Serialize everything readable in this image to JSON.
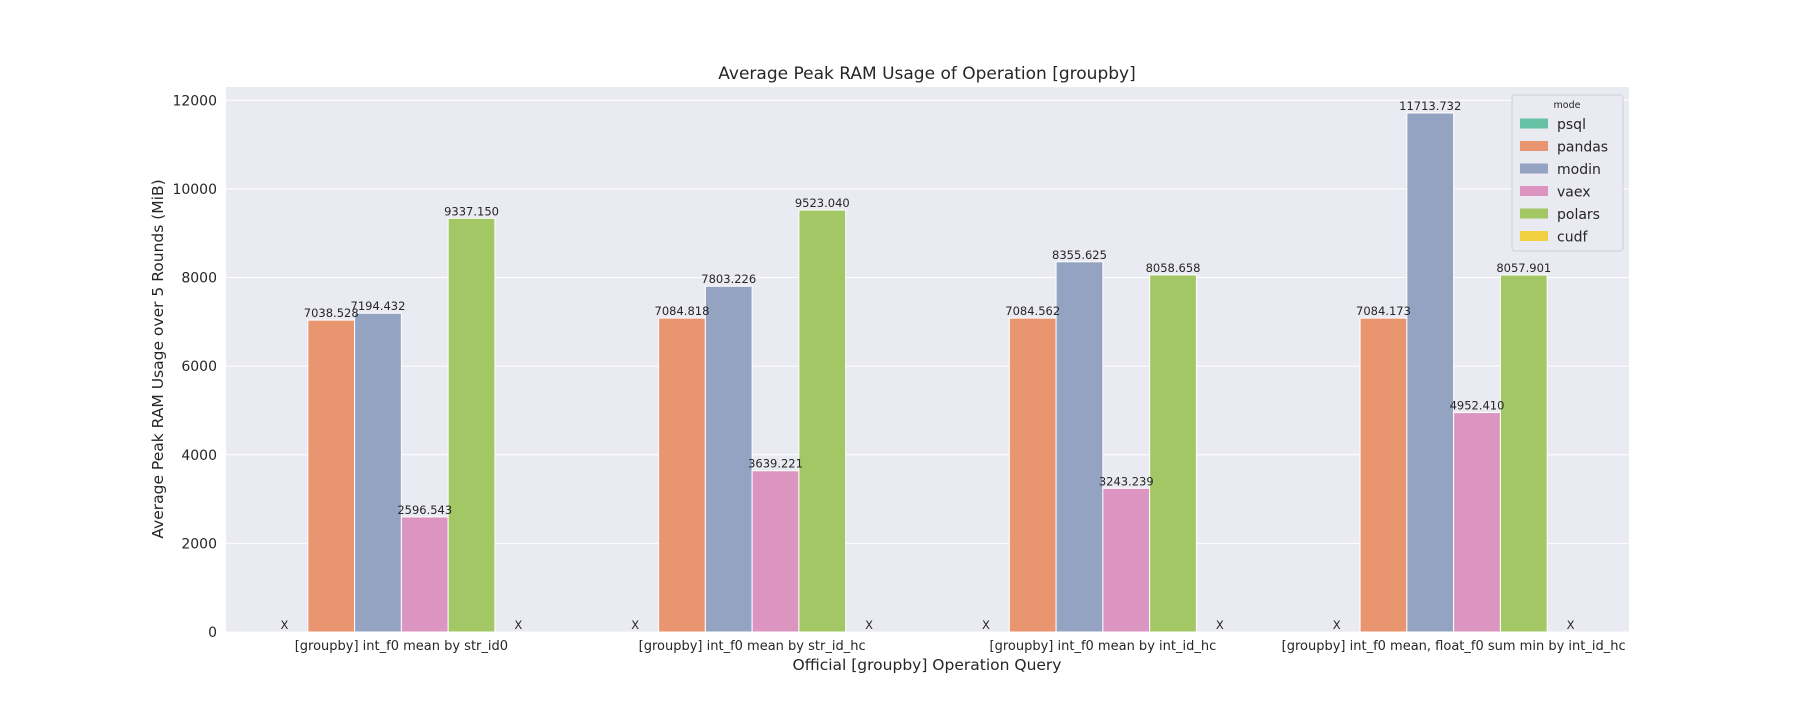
{
  "chart_data": {
    "type": "bar",
    "title": "Average Peak RAM Usage of Operation [groupby]",
    "xlabel": "Official [groupby] Operation Query",
    "ylabel": "Average Peak RAM Usage over 5 Rounds (MiB)",
    "ylim": [
      0,
      12300
    ],
    "yticks": [
      0,
      2000,
      4000,
      6000,
      8000,
      10000,
      12000
    ],
    "grid": true,
    "missing_marker": "X",
    "categories": [
      "[groupby] int_f0 mean by str_id0",
      "[groupby] int_f0 mean by str_id_hc",
      "[groupby] int_f0 mean by int_id_hc",
      "[groupby] int_f0 mean, float_f0 sum min by int_id_hc"
    ],
    "legend": {
      "title": "mode",
      "placement": "top-right"
    },
    "series": [
      {
        "name": "psql",
        "color": "#66c2a5",
        "values": [
          null,
          null,
          null,
          null
        ]
      },
      {
        "name": "pandas",
        "color": "#e9956f",
        "values": [
          7038.528,
          7084.818,
          7084.562,
          7084.173
        ]
      },
      {
        "name": "modin",
        "color": "#95a3c3",
        "values": [
          7194.432,
          7803.226,
          8355.625,
          11713.732
        ]
      },
      {
        "name": "vaex",
        "color": "#dc95c0",
        "values": [
          2596.543,
          3639.221,
          3243.239,
          4952.41
        ]
      },
      {
        "name": "polars",
        "color": "#a3c764",
        "values": [
          9337.15,
          9523.04,
          8058.658,
          8057.901
        ]
      },
      {
        "name": "cudf",
        "color": "#f0d03f",
        "values": [
          null,
          null,
          null,
          null
        ]
      }
    ]
  }
}
